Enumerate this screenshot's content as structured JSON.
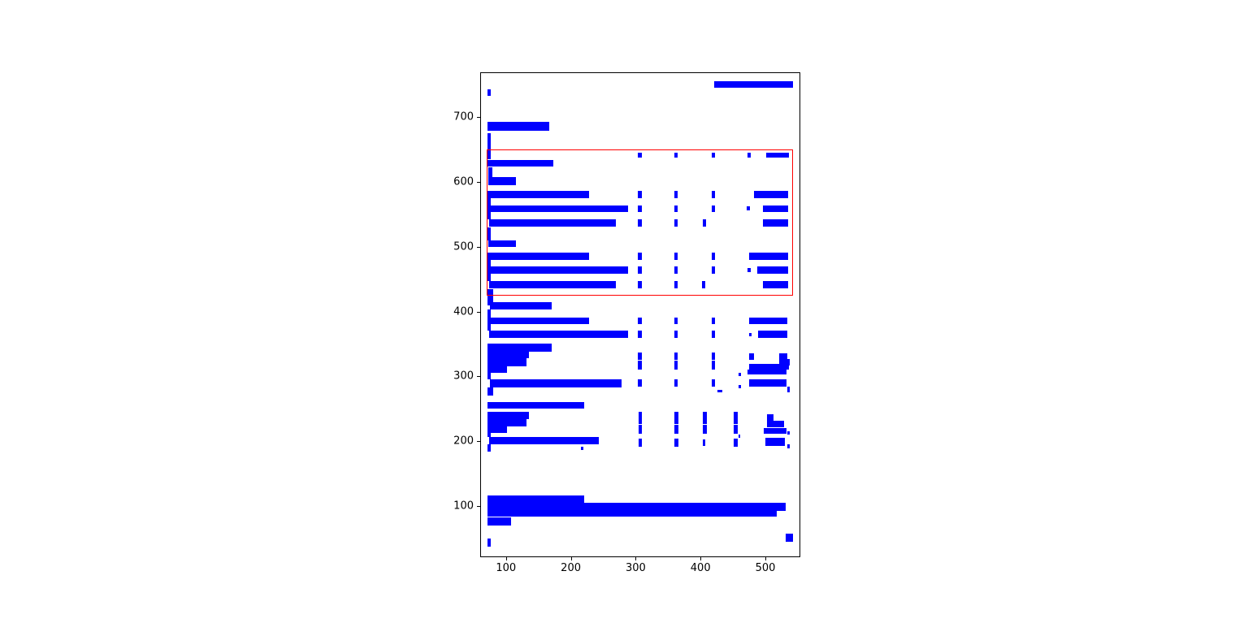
{
  "figure": {
    "background": "#ffffff",
    "tick_label_color": "#000000"
  },
  "chart_data": {
    "type": "rectangles",
    "title": "",
    "xlabel": "",
    "ylabel": "",
    "grid": false,
    "legend": null,
    "xlim": [
      61.4,
      552.6
    ],
    "ylim": [
      22.5,
      767.5
    ],
    "x_ticks": [
      100,
      200,
      300,
      400,
      500
    ],
    "y_ticks": [
      100,
      200,
      300,
      400,
      500,
      600,
      700
    ],
    "bar_color": "#0000ff",
    "annotation_color": "#ff0000",
    "annotation_rect": [
      70.5,
      425,
      542.5,
      650
    ],
    "rects": [
      [
        421,
        745,
        542,
        755
      ],
      [
        72,
        732,
        77,
        743
      ],
      [
        72,
        679,
        167,
        693
      ],
      [
        72,
        635,
        77,
        675
      ],
      [
        303,
        637,
        309,
        645
      ],
      [
        360,
        637,
        365,
        645
      ],
      [
        417,
        637,
        422,
        645
      ],
      [
        473,
        637,
        478,
        645
      ],
      [
        501,
        637,
        536,
        645
      ],
      [
        72,
        623,
        173,
        634
      ],
      [
        73,
        595,
        79,
        622
      ],
      [
        73,
        595,
        115,
        607
      ],
      [
        72,
        575,
        228,
        586
      ],
      [
        303,
        575,
        309,
        586
      ],
      [
        360,
        575,
        365,
        586
      ],
      [
        417,
        575,
        422,
        586
      ],
      [
        482,
        575,
        535,
        586
      ],
      [
        72,
        564,
        77,
        575
      ],
      [
        72,
        553,
        288,
        564
      ],
      [
        303,
        553,
        309,
        564
      ],
      [
        360,
        553,
        365,
        564
      ],
      [
        417,
        553,
        422,
        564
      ],
      [
        471,
        556,
        476,
        562
      ],
      [
        496,
        553,
        535,
        564
      ],
      [
        72,
        542,
        77,
        553
      ],
      [
        74,
        531,
        269,
        542
      ],
      [
        303,
        531,
        309,
        542
      ],
      [
        360,
        531,
        365,
        542
      ],
      [
        403,
        531,
        408,
        542
      ],
      [
        496,
        531,
        535,
        542
      ],
      [
        72,
        510,
        77,
        530
      ],
      [
        73,
        500,
        115,
        510
      ],
      [
        72,
        480,
        228,
        491
      ],
      [
        303,
        480,
        309,
        491
      ],
      [
        360,
        480,
        365,
        491
      ],
      [
        417,
        480,
        422,
        491
      ],
      [
        475,
        480,
        535,
        491
      ],
      [
        72,
        469,
        77,
        480
      ],
      [
        72,
        458,
        288,
        469
      ],
      [
        303,
        458,
        309,
        469
      ],
      [
        360,
        458,
        365,
        469
      ],
      [
        417,
        458,
        422,
        469
      ],
      [
        473,
        461,
        478,
        467
      ],
      [
        487,
        458,
        535,
        469
      ],
      [
        72,
        447,
        77,
        458
      ],
      [
        74,
        436,
        269,
        447
      ],
      [
        303,
        436,
        309,
        447
      ],
      [
        360,
        436,
        365,
        447
      ],
      [
        402,
        436,
        407,
        447
      ],
      [
        496,
        436,
        535,
        447
      ],
      [
        72,
        410,
        80,
        435
      ],
      [
        75,
        403,
        171,
        414
      ],
      [
        72,
        391,
        77,
        403
      ],
      [
        72,
        380,
        228,
        391
      ],
      [
        303,
        380,
        309,
        391
      ],
      [
        360,
        380,
        365,
        391
      ],
      [
        417,
        380,
        422,
        391
      ],
      [
        475,
        380,
        534,
        391
      ],
      [
        72,
        370,
        77,
        380
      ],
      [
        74,
        359,
        288,
        370
      ],
      [
        303,
        359,
        309,
        370
      ],
      [
        360,
        359,
        365,
        370
      ],
      [
        417,
        359,
        422,
        370
      ],
      [
        475,
        362,
        479,
        367
      ],
      [
        489,
        359,
        534,
        370
      ],
      [
        72,
        338,
        171,
        350
      ],
      [
        72,
        328,
        135,
        338
      ],
      [
        72,
        316,
        132,
        328
      ],
      [
        72,
        305,
        102,
        316
      ],
      [
        303,
        325,
        309,
        337
      ],
      [
        303,
        310,
        309,
        324
      ],
      [
        360,
        325,
        365,
        337
      ],
      [
        360,
        310,
        365,
        324
      ],
      [
        417,
        325,
        422,
        337
      ],
      [
        417,
        310,
        422,
        324
      ],
      [
        475,
        325,
        483,
        336
      ],
      [
        521,
        325,
        534,
        336
      ],
      [
        521,
        317,
        537,
        327
      ],
      [
        475,
        311,
        536,
        319
      ],
      [
        473,
        303,
        533,
        311
      ],
      [
        459,
        301,
        462,
        306
      ],
      [
        72,
        295,
        77,
        305
      ],
      [
        75,
        283,
        278,
        295
      ],
      [
        303,
        284,
        309,
        295
      ],
      [
        360,
        284,
        365,
        295
      ],
      [
        417,
        284,
        422,
        295
      ],
      [
        459,
        282,
        462,
        287
      ],
      [
        475,
        284,
        533,
        295
      ],
      [
        534,
        275,
        538,
        284
      ],
      [
        72,
        271,
        80,
        283
      ],
      [
        426,
        275,
        434,
        279
      ],
      [
        72,
        250,
        220,
        261
      ],
      [
        72,
        234,
        135,
        245
      ],
      [
        72,
        223,
        132,
        234
      ],
      [
        72,
        213,
        101,
        223
      ],
      [
        304,
        226,
        310,
        245
      ],
      [
        304,
        211,
        310,
        225
      ],
      [
        360,
        226,
        366,
        245
      ],
      [
        360,
        211,
        366,
        225
      ],
      [
        404,
        226,
        410,
        245
      ],
      [
        404,
        212,
        410,
        225
      ],
      [
        451,
        227,
        457,
        245
      ],
      [
        451,
        212,
        457,
        225
      ],
      [
        458,
        205,
        461,
        210
      ],
      [
        502,
        231,
        513,
        242
      ],
      [
        502,
        222,
        529,
        231
      ],
      [
        497,
        211,
        533,
        220
      ],
      [
        534,
        210,
        538,
        215
      ],
      [
        72,
        207,
        77,
        213
      ],
      [
        74,
        195,
        243,
        207
      ],
      [
        304,
        192,
        310,
        204
      ],
      [
        360,
        192,
        366,
        204
      ],
      [
        403,
        193,
        407,
        203
      ],
      [
        451,
        192,
        457,
        204
      ],
      [
        500,
        193,
        530,
        205
      ],
      [
        534,
        189,
        538,
        195
      ],
      [
        72,
        184,
        77,
        195
      ],
      [
        215,
        186,
        219,
        192
      ],
      [
        72,
        105,
        220,
        117
      ],
      [
        72,
        93,
        531,
        105
      ],
      [
        72,
        84,
        517,
        93
      ],
      [
        72,
        70,
        108,
        82
      ],
      [
        531,
        45,
        543,
        57
      ],
      [
        72,
        37,
        76,
        50
      ]
    ]
  }
}
